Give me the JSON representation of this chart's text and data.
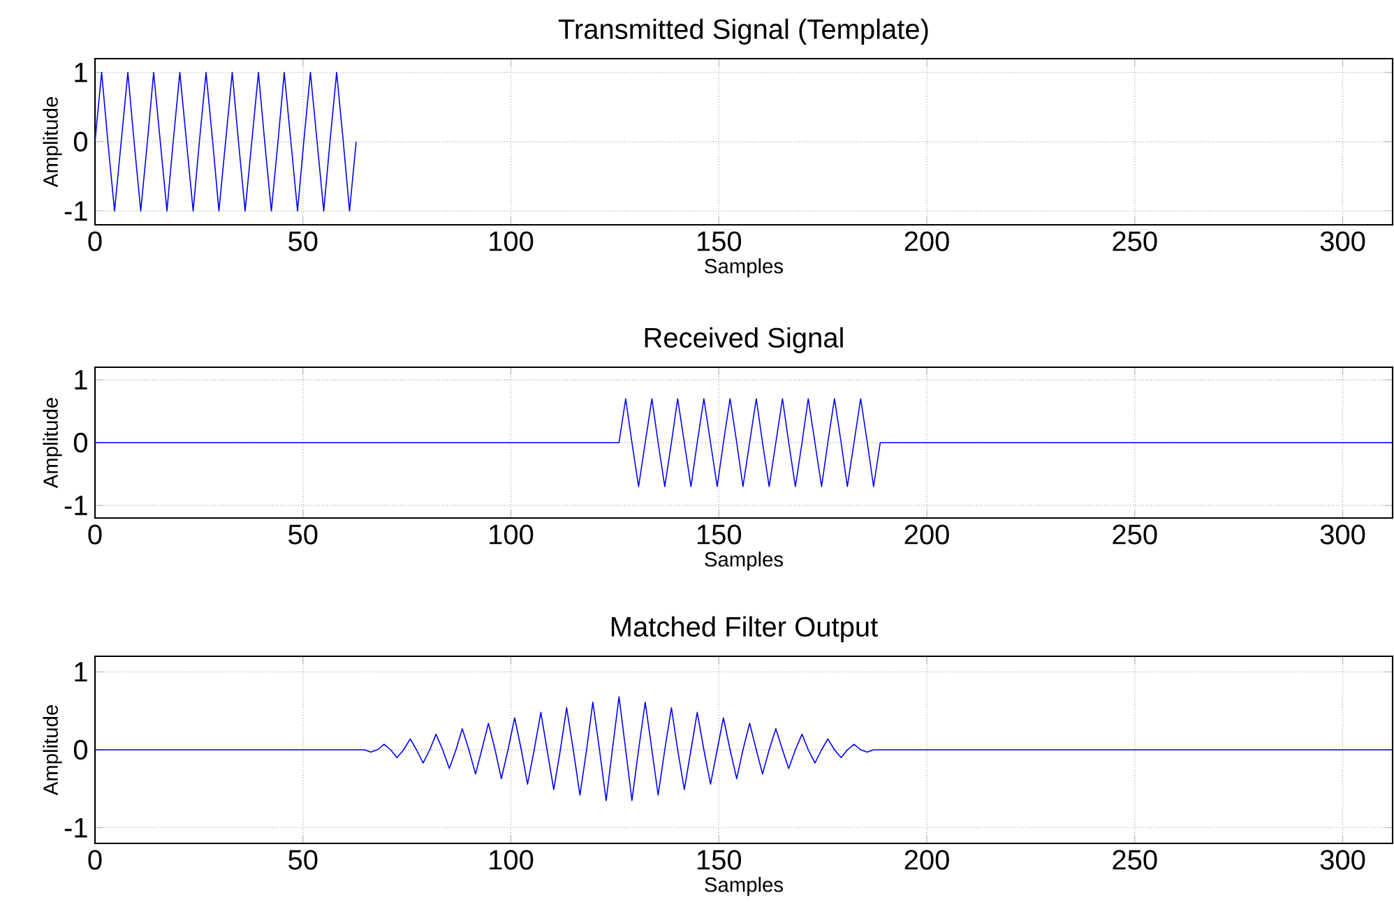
{
  "chart_data": [
    {
      "type": "line",
      "title": "Transmitted Signal (Template)",
      "xlabel": "Samples",
      "ylabel": "Amplitude",
      "xlim": [
        0,
        312
      ],
      "ylim": [
        -1.2,
        1.2
      ],
      "xticks": [
        0,
        50,
        100,
        150,
        200,
        250,
        300
      ],
      "yticks": [
        -1,
        0,
        1
      ],
      "grid": true,
      "line_style": "solid",
      "marker": "none",
      "series": [
        {
          "color": "#0000ff",
          "x": [
            0,
            1.6,
            3.1,
            4.7,
            6.3,
            7.9,
            9.4,
            11.0,
            12.6,
            14.1,
            15.7,
            17.3,
            18.8,
            20.4,
            22.0,
            23.6,
            25.1,
            26.7,
            28.3,
            29.8,
            31.4,
            33.0,
            34.5,
            36.1,
            37.7,
            39.3,
            40.8,
            42.4,
            44.0,
            45.5,
            47.1,
            48.7,
            50.2,
            51.8,
            53.4,
            55.0,
            56.5,
            58.1,
            59.7,
            61.2,
            62.8
          ],
          "values": [
            0,
            1,
            0,
            -1,
            0,
            1,
            0,
            -1,
            0,
            1,
            0,
            -1,
            0,
            1,
            0,
            -1,
            0,
            1,
            0,
            -1,
            0,
            1,
            0,
            -1,
            0,
            1,
            0,
            -1,
            0,
            1,
            0,
            -1,
            0,
            1,
            0,
            -1,
            0,
            1,
            0,
            -1,
            0
          ]
        }
      ]
    },
    {
      "type": "line",
      "title": "Received Signal",
      "xlabel": "Samples",
      "ylabel": "Amplitude",
      "xlim": [
        0,
        312
      ],
      "ylim": [
        -1.2,
        1.2
      ],
      "xticks": [
        0,
        50,
        100,
        150,
        200,
        250,
        300
      ],
      "yticks": [
        -1,
        0,
        1
      ],
      "grid": true,
      "line_style": "solid",
      "marker": "none",
      "series": [
        {
          "color": "#0000ff",
          "x": [
            0,
            126.0,
            127.6,
            129.1,
            130.7,
            132.3,
            133.9,
            135.4,
            137.0,
            138.6,
            140.1,
            141.7,
            143.3,
            144.8,
            146.4,
            148.0,
            149.6,
            151.1,
            152.7,
            154.3,
            155.8,
            157.4,
            159.0,
            160.5,
            162.1,
            163.7,
            165.3,
            166.8,
            168.4,
            170.0,
            171.5,
            173.1,
            174.7,
            176.2,
            177.8,
            179.4,
            180.9,
            182.5,
            184.1,
            185.7,
            187.2,
            188.8,
            312
          ],
          "values": [
            0,
            0,
            0.7,
            0,
            -0.7,
            0,
            0.7,
            0,
            -0.7,
            0,
            0.7,
            0,
            -0.7,
            0,
            0.7,
            0,
            -0.7,
            0,
            0.7,
            0,
            -0.7,
            0,
            0.7,
            0,
            -0.7,
            0,
            0.7,
            0,
            -0.7,
            0,
            0.7,
            0,
            -0.7,
            0,
            0.7,
            0,
            -0.7,
            0,
            0.7,
            0,
            -0.7,
            0,
            0
          ]
        }
      ]
    },
    {
      "type": "line",
      "title": "Matched Filter Output",
      "xlabel": "Samples",
      "ylabel": "Amplitude",
      "xlim": [
        0,
        312
      ],
      "ylim": [
        -1.2,
        1.2
      ],
      "xticks": [
        0,
        50,
        100,
        150,
        200,
        250,
        300
      ],
      "yticks": [
        -1,
        0,
        1
      ],
      "grid": true,
      "line_style": "solid",
      "marker": "none",
      "series": [
        {
          "color": "#0000ff",
          "x": [
            0,
            63.2,
            64.8,
            66.3,
            67.9,
            69.5,
            71.1,
            72.6,
            74.2,
            75.8,
            77.3,
            78.9,
            80.5,
            82.0,
            83.6,
            85.2,
            86.8,
            88.3,
            89.9,
            91.5,
            93.0,
            94.6,
            96.2,
            97.7,
            99.3,
            100.9,
            102.5,
            104.0,
            105.6,
            107.2,
            108.7,
            110.3,
            111.9,
            113.4,
            115.0,
            116.6,
            118.2,
            119.7,
            121.3,
            122.9,
            124.4,
            126.0,
            127.6,
            129.1,
            130.7,
            132.3,
            133.9,
            135.4,
            137.0,
            138.6,
            140.1,
            141.7,
            143.3,
            144.8,
            146.4,
            148.0,
            149.6,
            151.1,
            152.7,
            154.3,
            155.8,
            157.4,
            159.0,
            160.5,
            162.1,
            163.7,
            165.3,
            166.8,
            168.4,
            170.0,
            171.5,
            173.1,
            174.7,
            176.2,
            177.8,
            179.4,
            180.9,
            182.5,
            184.1,
            185.7,
            187.2,
            188.8,
            312
          ],
          "values": [
            0,
            0,
            0,
            -0.03,
            0,
            0.07,
            0,
            -0.1,
            0,
            0.14,
            0,
            -0.17,
            0,
            0.2,
            0,
            -0.24,
            0,
            0.27,
            0,
            -0.31,
            0,
            0.34,
            0,
            -0.37,
            0,
            0.41,
            0,
            -0.44,
            0,
            0.48,
            0,
            -0.51,
            0,
            0.54,
            0,
            -0.58,
            0,
            0.61,
            0,
            -0.65,
            0,
            0.68,
            0,
            -0.65,
            0,
            0.61,
            0,
            -0.58,
            0,
            0.54,
            0,
            -0.51,
            0,
            0.48,
            0,
            -0.44,
            0,
            0.41,
            0,
            -0.37,
            0,
            0.34,
            0,
            -0.31,
            0,
            0.27,
            0,
            -0.24,
            0,
            0.2,
            0,
            -0.17,
            0,
            0.14,
            0,
            -0.1,
            0,
            0.07,
            0,
            -0.03,
            0,
            0,
            0
          ]
        }
      ]
    }
  ]
}
